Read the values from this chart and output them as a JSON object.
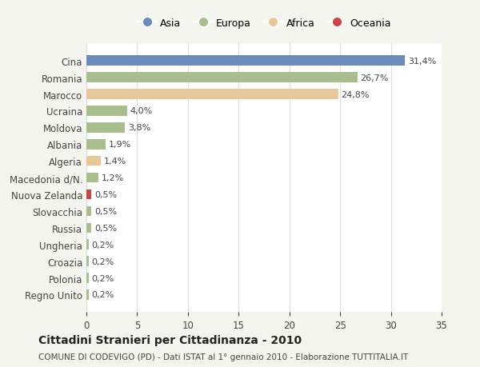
{
  "countries": [
    "Cina",
    "Romania",
    "Marocco",
    "Ucraina",
    "Moldova",
    "Albania",
    "Algeria",
    "Macedonia d/N.",
    "Nuova Zelanda",
    "Slovacchia",
    "Russia",
    "Ungheria",
    "Croazia",
    "Polonia",
    "Regno Unito"
  ],
  "values": [
    31.4,
    26.7,
    24.8,
    4.0,
    3.8,
    1.9,
    1.4,
    1.2,
    0.5,
    0.5,
    0.5,
    0.2,
    0.2,
    0.2,
    0.2
  ],
  "labels": [
    "31,4%",
    "26,7%",
    "24,8%",
    "4,0%",
    "3,8%",
    "1,9%",
    "1,4%",
    "1,2%",
    "0,5%",
    "0,5%",
    "0,5%",
    "0,2%",
    "0,2%",
    "0,2%",
    "0,2%"
  ],
  "colors": [
    "#6b8cba",
    "#a8be8c",
    "#e8c898",
    "#a8be8c",
    "#a8be8c",
    "#a8be8c",
    "#e8c898",
    "#a8be8c",
    "#cc4444",
    "#a8be8c",
    "#a8be8c",
    "#a8be8c",
    "#a8be8c",
    "#a8be8c",
    "#a8be8c"
  ],
  "continent_labels": [
    "Asia",
    "Europa",
    "Africa",
    "Oceania"
  ],
  "continent_colors": [
    "#6b8cba",
    "#a8be8c",
    "#e8c898",
    "#cc4444"
  ],
  "title": "Cittadini Stranieri per Cittadinanza - 2010",
  "subtitle": "COMUNE DI CODEVIGO (PD) - Dati ISTAT al 1° gennaio 2010 - Elaborazione TUTTITALIA.IT",
  "xlim": [
    0,
    35
  ],
  "xticks": [
    0,
    5,
    10,
    15,
    20,
    25,
    30,
    35
  ],
  "background_color": "#f5f5f0",
  "bar_background": "#ffffff",
  "grid_color": "#dddddd"
}
